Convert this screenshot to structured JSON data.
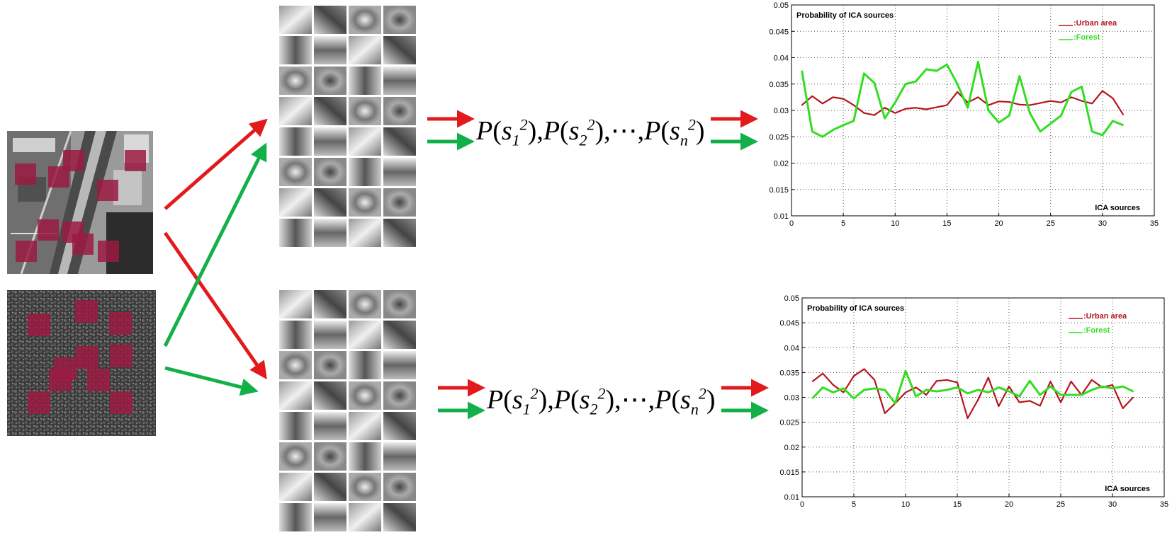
{
  "formula": {
    "prefix": "P",
    "term_subscripts": [
      "1",
      "2",
      "n"
    ],
    "power": "2",
    "ellipsis": "⋯"
  },
  "colors": {
    "urban": "#e31a1c",
    "forest": "#13b04a",
    "patch": "#9b1b42",
    "urban_line": "#b5151d",
    "forest_line": "#33dd22"
  },
  "icons": {
    "urban_image": "aerial-urban-photo",
    "forest_image": "aerial-forest-photo",
    "urban_basis": "ica-basis-grid-urban",
    "forest_basis": "ica-basis-grid-forest"
  },
  "chart_data": [
    {
      "type": "line",
      "title": "Probability of ICA sources",
      "xlabel": "ICA sources",
      "ylabel": "",
      "xlim": [
        0,
        35
      ],
      "ylim": [
        0.01,
        0.05
      ],
      "xticks": [
        "0",
        "5",
        "10",
        "15",
        "20",
        "25",
        "30",
        "35"
      ],
      "yticks": [
        "0.01",
        "0.015",
        "0.02",
        "0.025",
        "0.03",
        "0.035",
        "0.04",
        "0.045",
        "0.05"
      ],
      "grid": true,
      "legend": "top-right",
      "x": [
        1,
        2,
        3,
        4,
        5,
        6,
        7,
        8,
        9,
        10,
        11,
        12,
        13,
        14,
        15,
        16,
        17,
        18,
        19,
        20,
        21,
        22,
        23,
        24,
        25,
        26,
        27,
        28,
        29,
        30,
        31,
        32
      ],
      "series": [
        {
          "name": ":Urban area",
          "color": "#b5151d",
          "values": [
            0.031,
            0.0327,
            0.0313,
            0.0325,
            0.0322,
            0.031,
            0.0295,
            0.0291,
            0.0305,
            0.0295,
            0.0303,
            0.0305,
            0.0302,
            0.0306,
            0.031,
            0.0335,
            0.0315,
            0.0325,
            0.031,
            0.0317,
            0.0316,
            0.0311,
            0.031,
            0.0314,
            0.0318,
            0.0315,
            0.0325,
            0.0318,
            0.0313,
            0.0337,
            0.0323,
            0.0292
          ]
        },
        {
          "name": ":Forest",
          "color": "#33dd22",
          "values": [
            0.0375,
            0.026,
            0.025,
            0.0263,
            0.0272,
            0.028,
            0.037,
            0.0352,
            0.0285,
            0.0315,
            0.035,
            0.0355,
            0.0378,
            0.0375,
            0.0387,
            0.035,
            0.0305,
            0.0392,
            0.03,
            0.0277,
            0.029,
            0.0365,
            0.0295,
            0.026,
            0.0275,
            0.029,
            0.0335,
            0.0345,
            0.026,
            0.0253,
            0.028,
            0.0272
          ]
        }
      ]
    },
    {
      "type": "line",
      "title": "Probability of ICA sources",
      "xlabel": "ICA sources",
      "ylabel": "",
      "xlim": [
        0,
        35
      ],
      "ylim": [
        0.01,
        0.05
      ],
      "xticks": [
        "0",
        "5",
        "10",
        "15",
        "20",
        "25",
        "30",
        "35"
      ],
      "yticks": [
        "0.01",
        "0.015",
        "0.02",
        "0.025",
        "0.03",
        "0.035",
        "0.04",
        "0.045",
        "0.05"
      ],
      "grid": true,
      "legend": "top-right",
      "x": [
        1,
        2,
        3,
        4,
        5,
        6,
        7,
        8,
        9,
        10,
        11,
        12,
        13,
        14,
        15,
        16,
        17,
        18,
        19,
        20,
        21,
        22,
        23,
        24,
        25,
        26,
        27,
        28,
        29,
        30,
        31,
        32
      ],
      "series": [
        {
          "name": ":Urban area",
          "color": "#b5151d",
          "values": [
            0.0332,
            0.0348,
            0.0325,
            0.031,
            0.0343,
            0.0357,
            0.0335,
            0.0268,
            0.0288,
            0.031,
            0.032,
            0.0305,
            0.0333,
            0.0335,
            0.033,
            0.0258,
            0.0295,
            0.034,
            0.0282,
            0.0322,
            0.029,
            0.0293,
            0.0283,
            0.0332,
            0.029,
            0.0332,
            0.0305,
            0.0335,
            0.032,
            0.0325,
            0.0278,
            0.03
          ]
        },
        {
          "name": ":Forest",
          "color": "#33dd22",
          "values": [
            0.0298,
            0.032,
            0.031,
            0.0318,
            0.0298,
            0.0315,
            0.0318,
            0.0315,
            0.0288,
            0.0353,
            0.0302,
            0.0315,
            0.0312,
            0.0315,
            0.032,
            0.0308,
            0.0315,
            0.031,
            0.032,
            0.0312,
            0.0302,
            0.0333,
            0.0305,
            0.0322,
            0.0305,
            0.0305,
            0.0305,
            0.0315,
            0.0322,
            0.0318,
            0.0322,
            0.0312
          ]
        }
      ]
    }
  ]
}
